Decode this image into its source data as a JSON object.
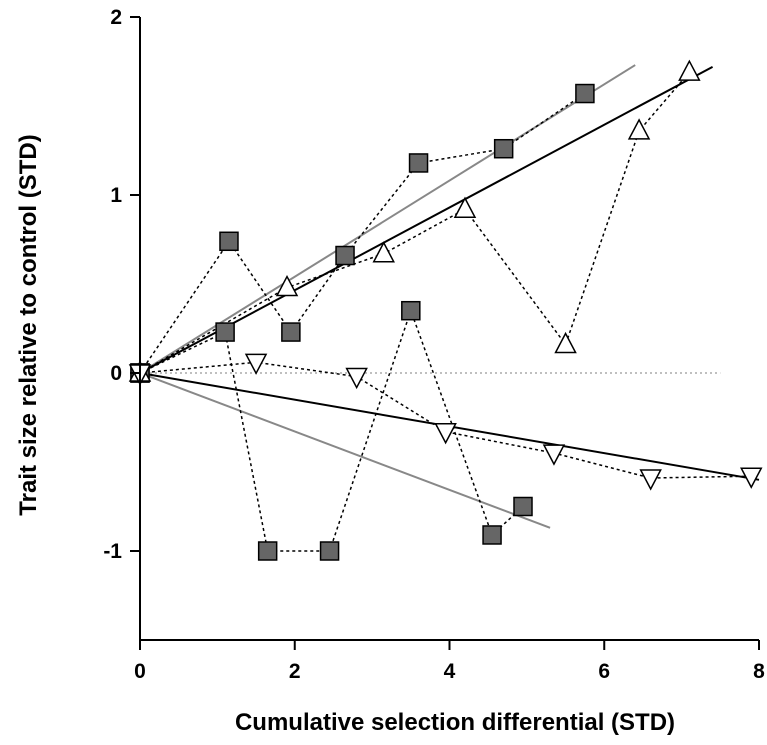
{
  "chart_data": {
    "type": "scatter",
    "xlabel": "Cumulative selection differential (STD)",
    "ylabel": "Trait size relative to control (STD)",
    "xlim": [
      0,
      8
    ],
    "ylim": [
      -1.5,
      2
    ],
    "xticks": [
      0,
      2,
      4,
      6,
      8
    ],
    "xtick_labels": [
      "0",
      "2",
      "4",
      "6",
      "8"
    ],
    "yticks": [
      -1,
      0,
      1,
      2
    ],
    "ytick_labels": [
      "-1",
      "0",
      "1",
      "2"
    ],
    "grid": false,
    "legend": "none",
    "series": [
      {
        "marker": "square",
        "connect": "dotted",
        "color": "#666666",
        "x": [
          0,
          1.15,
          1.95,
          2.65,
          3.6,
          4.7,
          5.75
        ],
        "y": [
          0,
          0.74,
          0.23,
          0.66,
          1.18,
          1.26,
          1.57
        ]
      },
      {
        "marker": "square",
        "connect": "dotted",
        "color": "#666666",
        "x": [
          0,
          1.1,
          1.65,
          2.45,
          3.5,
          4.55,
          4.95
        ],
        "y": [
          0,
          0.23,
          -1.0,
          -1.0,
          0.35,
          -0.91,
          -0.75
        ]
      },
      {
        "marker": "triangle-up",
        "connect": "dotted",
        "color": "#ffffff",
        "x": [
          0,
          1.9,
          3.15,
          4.2,
          5.5,
          6.45,
          7.1
        ],
        "y": [
          0,
          0.48,
          0.67,
          0.92,
          0.16,
          1.36,
          1.69
        ]
      },
      {
        "marker": "triangle-down",
        "connect": "dotted",
        "color": "#ffffff",
        "x": [
          0,
          1.5,
          2.8,
          3.95,
          5.35,
          6.6,
          7.9
        ],
        "y": [
          0,
          0.06,
          -0.02,
          -0.33,
          -0.45,
          -0.59,
          -0.58
        ]
      }
    ],
    "fit_lines": [
      {
        "color": "#888888",
        "style": "solid",
        "x": [
          0,
          6.4
        ],
        "y": [
          0,
          1.73
        ]
      },
      {
        "color": "#000000",
        "style": "solid",
        "x": [
          0,
          7.4
        ],
        "y": [
          0,
          1.72
        ]
      },
      {
        "color": "#888888",
        "style": "solid",
        "x": [
          0,
          5.3
        ],
        "y": [
          0,
          -0.87
        ]
      },
      {
        "color": "#000000",
        "style": "solid",
        "x": [
          0,
          8
        ],
        "y": [
          0,
          -0.6
        ]
      },
      {
        "color": "#aaaaaa",
        "style": "dotted",
        "x": [
          0,
          7.5
        ],
        "y": [
          0,
          0
        ]
      }
    ]
  }
}
